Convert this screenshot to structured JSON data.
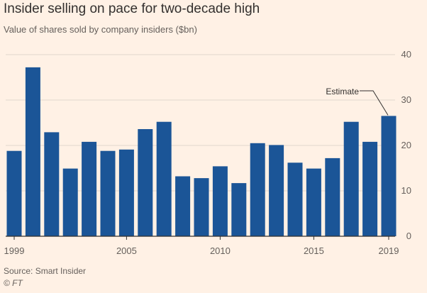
{
  "title": "Insider selling on pace for two-decade high",
  "subtitle": "Value of shares sold by company insiders ($bn)",
  "source": "Source: Smart Insider",
  "credit": "© FT",
  "colors": {
    "background": "#fff1e5",
    "bar": "#1b5597",
    "grid": "#e2d7cd",
    "axis": "#33302e",
    "text": "#66605c"
  },
  "chart_data": {
    "type": "bar",
    "x": [
      1999,
      2000,
      2001,
      2002,
      2003,
      2004,
      2005,
      2006,
      2007,
      2008,
      2009,
      2010,
      2011,
      2012,
      2013,
      2014,
      2015,
      2016,
      2017,
      2018,
      2019
    ],
    "values": [
      18.8,
      37.2,
      22.9,
      14.9,
      20.8,
      18.8,
      19.1,
      23.6,
      25.2,
      13.2,
      12.8,
      15.4,
      11.7,
      20.5,
      20.1,
      16.2,
      14.9,
      17.2,
      25.2,
      20.8,
      26.5
    ],
    "x_tick_labels": [
      "1999",
      "2005",
      "2010",
      "2015",
      "2019"
    ],
    "x_tick_values": [
      1999,
      2005,
      2010,
      2015,
      2019
    ],
    "y_ticks": [
      0,
      10,
      20,
      30,
      40
    ],
    "ylim": [
      0,
      40
    ],
    "y_axis_side": "right",
    "grid": true,
    "annotations": [
      {
        "text": "Estimate",
        "x": 2019
      }
    ]
  }
}
